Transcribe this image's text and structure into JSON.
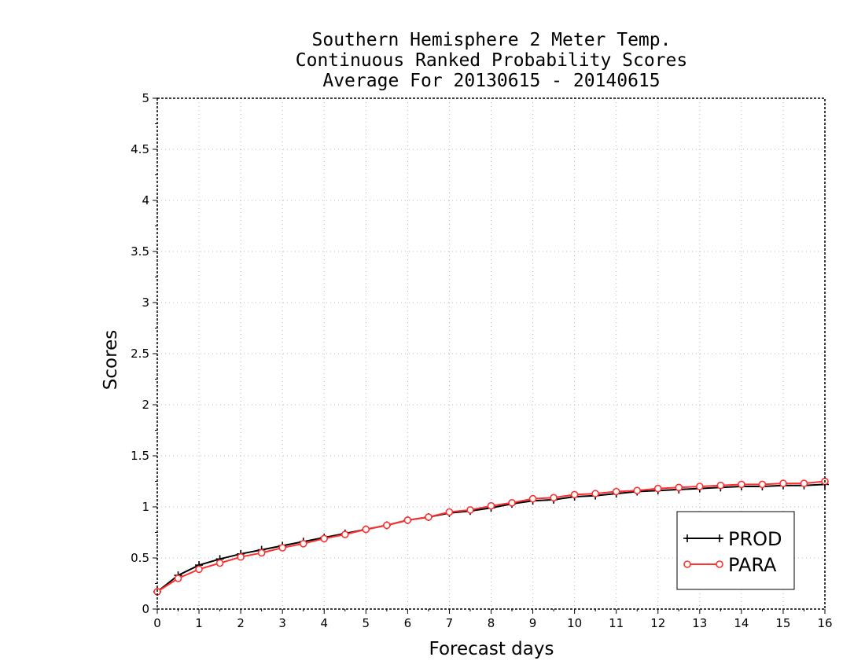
{
  "chart_data": {
    "type": "line",
    "title": [
      "Southern Hemisphere 2 Meter Temp.",
      "Continuous Ranked Probability Scores",
      "Average For 20130615 - 20140615"
    ],
    "xlabel": "Forecast days",
    "ylabel": "Scores",
    "xlim": [
      0,
      16
    ],
    "ylim": [
      0,
      5
    ],
    "xticks": [
      "0",
      "1",
      "2",
      "3",
      "4",
      "5",
      "6",
      "7",
      "8",
      "9",
      "10",
      "11",
      "12",
      "13",
      "14",
      "15",
      "16"
    ],
    "yticks": [
      "0",
      "0.5",
      "1",
      "1.5",
      "2",
      "2.5",
      "3",
      "3.5",
      "4",
      "4.5",
      "5"
    ],
    "grid": true,
    "legend_position": "bottom-right",
    "x": [
      0,
      0.5,
      1,
      1.5,
      2,
      2.5,
      3,
      3.5,
      4,
      4.5,
      5,
      5.5,
      6,
      6.5,
      7,
      7.5,
      8,
      8.5,
      9,
      9.5,
      10,
      10.5,
      11,
      11.5,
      12,
      12.5,
      13,
      13.5,
      14,
      14.5,
      15,
      15.5,
      16
    ],
    "series": [
      {
        "name": "PROD",
        "color": "#000000",
        "marker": "plus",
        "values": [
          0.17,
          0.33,
          0.43,
          0.49,
          0.54,
          0.58,
          0.62,
          0.66,
          0.7,
          0.74,
          0.78,
          0.82,
          0.87,
          0.9,
          0.94,
          0.96,
          0.99,
          1.03,
          1.06,
          1.07,
          1.1,
          1.11,
          1.13,
          1.15,
          1.16,
          1.17,
          1.18,
          1.19,
          1.2,
          1.2,
          1.21,
          1.21,
          1.22
        ]
      },
      {
        "name": "PARA",
        "color": "#ff3030",
        "marker": "circle",
        "values": [
          0.17,
          0.3,
          0.39,
          0.45,
          0.51,
          0.55,
          0.6,
          0.64,
          0.69,
          0.73,
          0.78,
          0.82,
          0.87,
          0.9,
          0.95,
          0.97,
          1.01,
          1.04,
          1.08,
          1.09,
          1.12,
          1.13,
          1.15,
          1.16,
          1.18,
          1.19,
          1.2,
          1.21,
          1.22,
          1.22,
          1.23,
          1.23,
          1.25
        ]
      }
    ]
  }
}
